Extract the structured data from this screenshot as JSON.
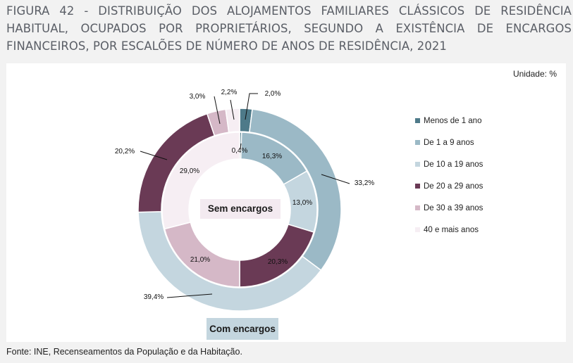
{
  "title": "FIGURA 42 - DISTRIBUIÇÃO DOS ALOJAMENTOS FAMILIARES CLÁSSICOS DE RESIDÊNCIA HABITUAL, OCUPADOS POR PROPRIETÁRIOS, SEGUNDO A EXISTÊNCIA DE ENCARGOS FINANCEIROS, POR ESCALÕES DE NÚMERO DE ANOS DE RESIDÊNCIA, 2021",
  "unit_label": "Unidade: %",
  "source": "Fonte: INE, Recenseamentos da População e da Habitação.",
  "inner_ring_label": "Sem encargos",
  "outer_ring_label": "Com encargos",
  "colors": {
    "menos_1": "#4e7a89",
    "1_9": "#9bb9c6",
    "10_19": "#c4d6df",
    "20_29": "#6a3a55",
    "30_39": "#d5b8c7",
    "40_mais": "#f6eef3"
  },
  "chart_data": {
    "type": "pie",
    "variant": "nested-donut",
    "categories": [
      "Menos de 1 ano",
      "De 1 a 9 anos",
      "De 10 a 19 anos",
      "De 20 a 29 anos",
      "De 30 a 39 anos",
      "40 e mais anos"
    ],
    "series": [
      {
        "name": "Com encargos",
        "ring": "outer",
        "values": [
          2.0,
          33.2,
          39.4,
          20.2,
          3.0,
          2.2
        ],
        "labels": [
          "2,0%",
          "33,2%",
          "39,4%",
          "20,2%",
          "3,0%",
          "2,2%"
        ]
      },
      {
        "name": "Sem encargos",
        "ring": "inner",
        "values": [
          0.4,
          16.3,
          13.0,
          20.3,
          21.0,
          29.0
        ],
        "labels": [
          "0,4%",
          "16,3%",
          "13,0%",
          "20,3%",
          "21,0%",
          "29,0%"
        ]
      }
    ],
    "legend_position": "right"
  }
}
